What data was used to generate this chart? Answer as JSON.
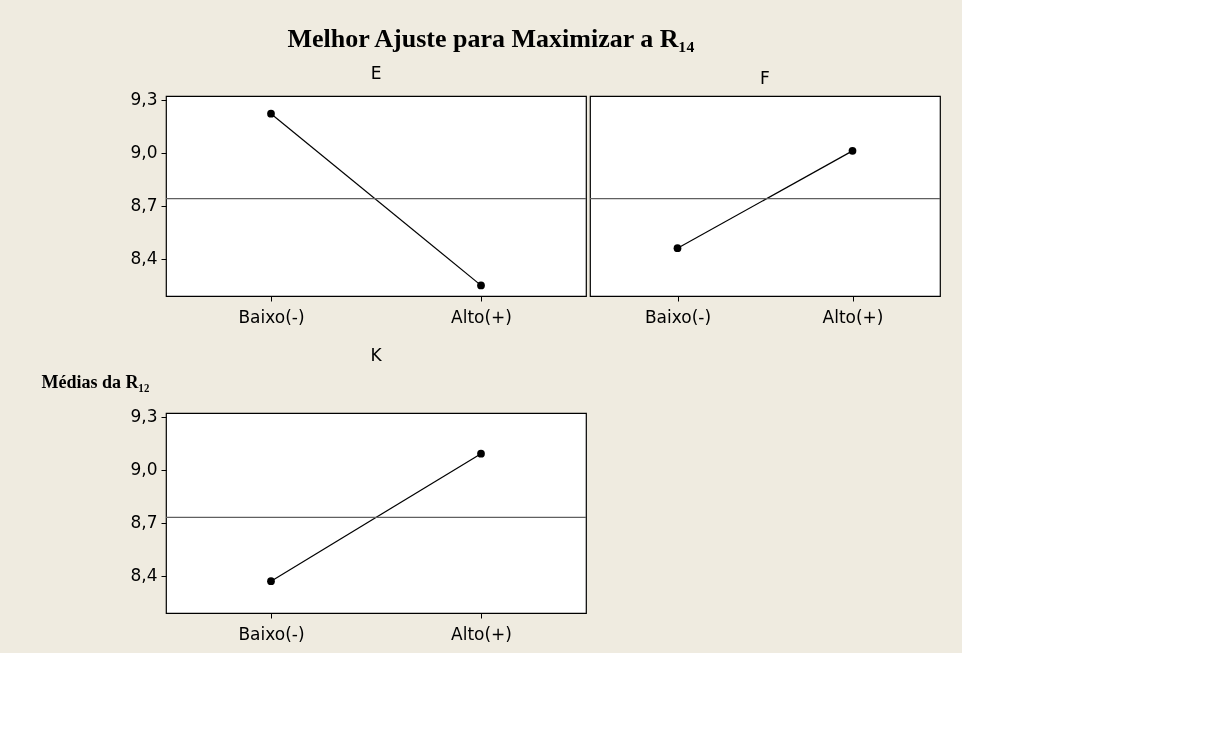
{
  "chart_data": [
    {
      "type": "line",
      "title": "E",
      "annotations": [
        "Melhor Ajuste para Maximizar a R₁₄"
      ],
      "categories": [
        "Baixo(-)",
        "Alto(+)"
      ],
      "series": [
        {
          "color": "#000000",
          "values": [
            9.22,
            8.25
          ]
        }
      ],
      "ylim": [
        8.19,
        9.32
      ],
      "yticks": [
        {
          "value": 8.4,
          "label": "8,4"
        },
        {
          "value": 8.7,
          "label": "8,7"
        },
        {
          "value": 9.0,
          "label": "9,0"
        },
        {
          "value": 9.3,
          "label": "9,3"
        }
      ],
      "ref_lines": [
        {
          "axis": "y",
          "value": 8.74,
          "color": "#606060"
        }
      ],
      "marker": "circle",
      "line_style": "solid"
    },
    {
      "type": "line",
      "title": "F",
      "categories": [
        "Baixo(-)",
        "Alto(+)"
      ],
      "series": [
        {
          "color": "#000000",
          "values": [
            8.46,
            9.01
          ]
        }
      ],
      "ylim": [
        8.19,
        9.32
      ],
      "ref_lines": [
        {
          "axis": "y",
          "value": 8.74,
          "color": "#606060"
        }
      ],
      "marker": "circle",
      "line_style": "solid",
      "tick_labels": "x"
    },
    {
      "type": "line",
      "title": "K",
      "ylabel": "Médias da R₁₂",
      "categories": [
        "Baixo(-)",
        "Alto(+)"
      ],
      "series": [
        {
          "color": "#000000",
          "values": [
            8.37,
            9.09
          ]
        }
      ],
      "ylim": [
        8.19,
        9.32
      ],
      "yticks": [
        {
          "value": 8.4,
          "label": "8,4"
        },
        {
          "value": 8.7,
          "label": "8,7"
        },
        {
          "value": 9.0,
          "label": "9,0"
        },
        {
          "value": 9.3,
          "label": "9,3"
        }
      ],
      "ref_lines": [
        {
          "axis": "y",
          "value": 8.73,
          "color": "#606060"
        }
      ],
      "marker": "circle",
      "line_style": "solid"
    }
  ]
}
